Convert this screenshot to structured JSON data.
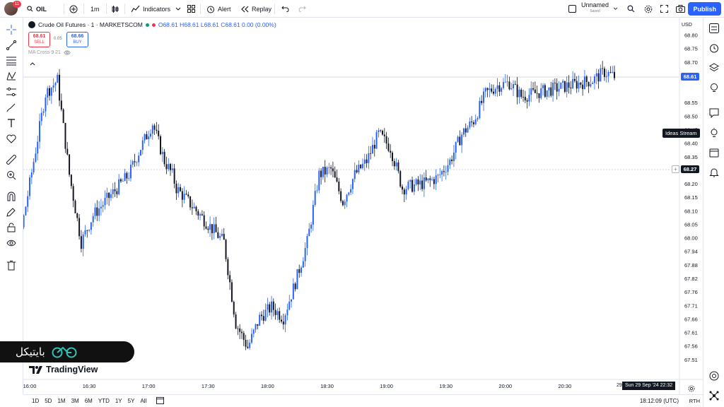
{
  "header": {
    "avatar_badge": "11",
    "symbol_search": "OIL",
    "interval": "1m",
    "indicators_label": "Indicators",
    "alert_label": "Alert",
    "replay_label": "Replay",
    "layout_name": "Unnamed",
    "layout_status": "Saved",
    "publish_label": "Publish"
  },
  "legend": {
    "title": "Crude Oil Futures · 1 · MARKETSCOM",
    "ohlc": "O68.61 H68.61 L68.61 C68.61 0.00 (0.00%)",
    "sell_price": "68.61",
    "sell_label": "SELL",
    "spread": "0.05",
    "buy_price": "68.66",
    "buy_label": "BUY",
    "ma_label": "MA Cross 9 21",
    "colors": {
      "up": "#2962ff",
      "down": "#131722",
      "sell": "#f23645"
    }
  },
  "price_axis": {
    "currency": "USD",
    "ticks": [
      "68.80",
      "68.75",
      "68.70",
      "68.65",
      "68.55",
      "68.50",
      "68.45",
      "68.40",
      "68.35",
      "68.30",
      "68.20",
      "68.15",
      "68.10",
      "68.05",
      "68.00",
      "67.94",
      "67.88",
      "67.82",
      "67.76",
      "67.71",
      "67.66",
      "67.61",
      "67.56",
      "67.51"
    ],
    "last_price": "68.61",
    "crosshair_price": "68.27"
  },
  "time_axis": {
    "ticks": [
      "16:00",
      "16:30",
      "17:00",
      "17:30",
      "18:00",
      "18:30",
      "19:00",
      "19:30",
      "20:00",
      "20:30"
    ],
    "crosshair_hint": "29",
    "crosshair_label": "Sun 29 Sep '24   22:32"
  },
  "tooltip": "Ideas Stream",
  "bottom": {
    "ranges": [
      "1D",
      "5D",
      "1M",
      "3M",
      "6M",
      "YTD",
      "1Y",
      "5Y",
      "All"
    ],
    "clock": "18:12:09 (UTC)",
    "session": "RTH"
  },
  "branding": {
    "watermark_text": "بایتیکل",
    "tv_logo_text": "TradingView"
  },
  "chart_data": {
    "type": "candlestick",
    "symbol": "Crude Oil Futures",
    "interval": "1m",
    "x_start": "15:38",
    "x_end": "20:56",
    "series": [
      {
        "name": "Close",
        "x": [
          "15:38",
          "15:46",
          "15:56",
          "16:02",
          "16:08",
          "16:14",
          "16:20",
          "16:26",
          "16:32",
          "16:38",
          "16:44",
          "16:50",
          "16:56",
          "17:02",
          "17:08",
          "17:12",
          "17:14",
          "17:20",
          "17:26",
          "17:32",
          "17:38",
          "17:44",
          "17:50",
          "17:56",
          "18:02",
          "18:08",
          "18:14",
          "18:20",
          "18:26",
          "18:32",
          "18:38",
          "18:44",
          "18:50",
          "18:56",
          "19:02",
          "19:08",
          "19:14",
          "19:20",
          "19:26",
          "19:32",
          "19:38",
          "19:44",
          "19:50",
          "19:56",
          "20:02",
          "20:08",
          "20:14",
          "20:20",
          "20:26",
          "20:32",
          "20:38",
          "20:44",
          "20:50",
          "20:56"
        ],
        "y": [
          68.15,
          67.95,
          68.05,
          68.3,
          68.55,
          68.6,
          68.25,
          68.0,
          68.1,
          68.15,
          68.2,
          68.25,
          68.35,
          68.44,
          68.3,
          68.25,
          68.2,
          68.15,
          68.1,
          68.05,
          68.0,
          67.7,
          67.61,
          67.72,
          67.76,
          67.72,
          67.85,
          68.0,
          68.25,
          68.27,
          68.15,
          68.25,
          68.3,
          68.4,
          68.35,
          68.2,
          68.21,
          68.22,
          68.24,
          68.3,
          68.4,
          68.45,
          68.55,
          68.58,
          68.59,
          68.54,
          68.55,
          68.56,
          68.57,
          68.58,
          68.59,
          68.6,
          68.63,
          68.61
        ]
      }
    ],
    "ylim": [
      67.51,
      68.8
    ],
    "last_price": 68.61,
    "crosshair_price": 68.27
  }
}
